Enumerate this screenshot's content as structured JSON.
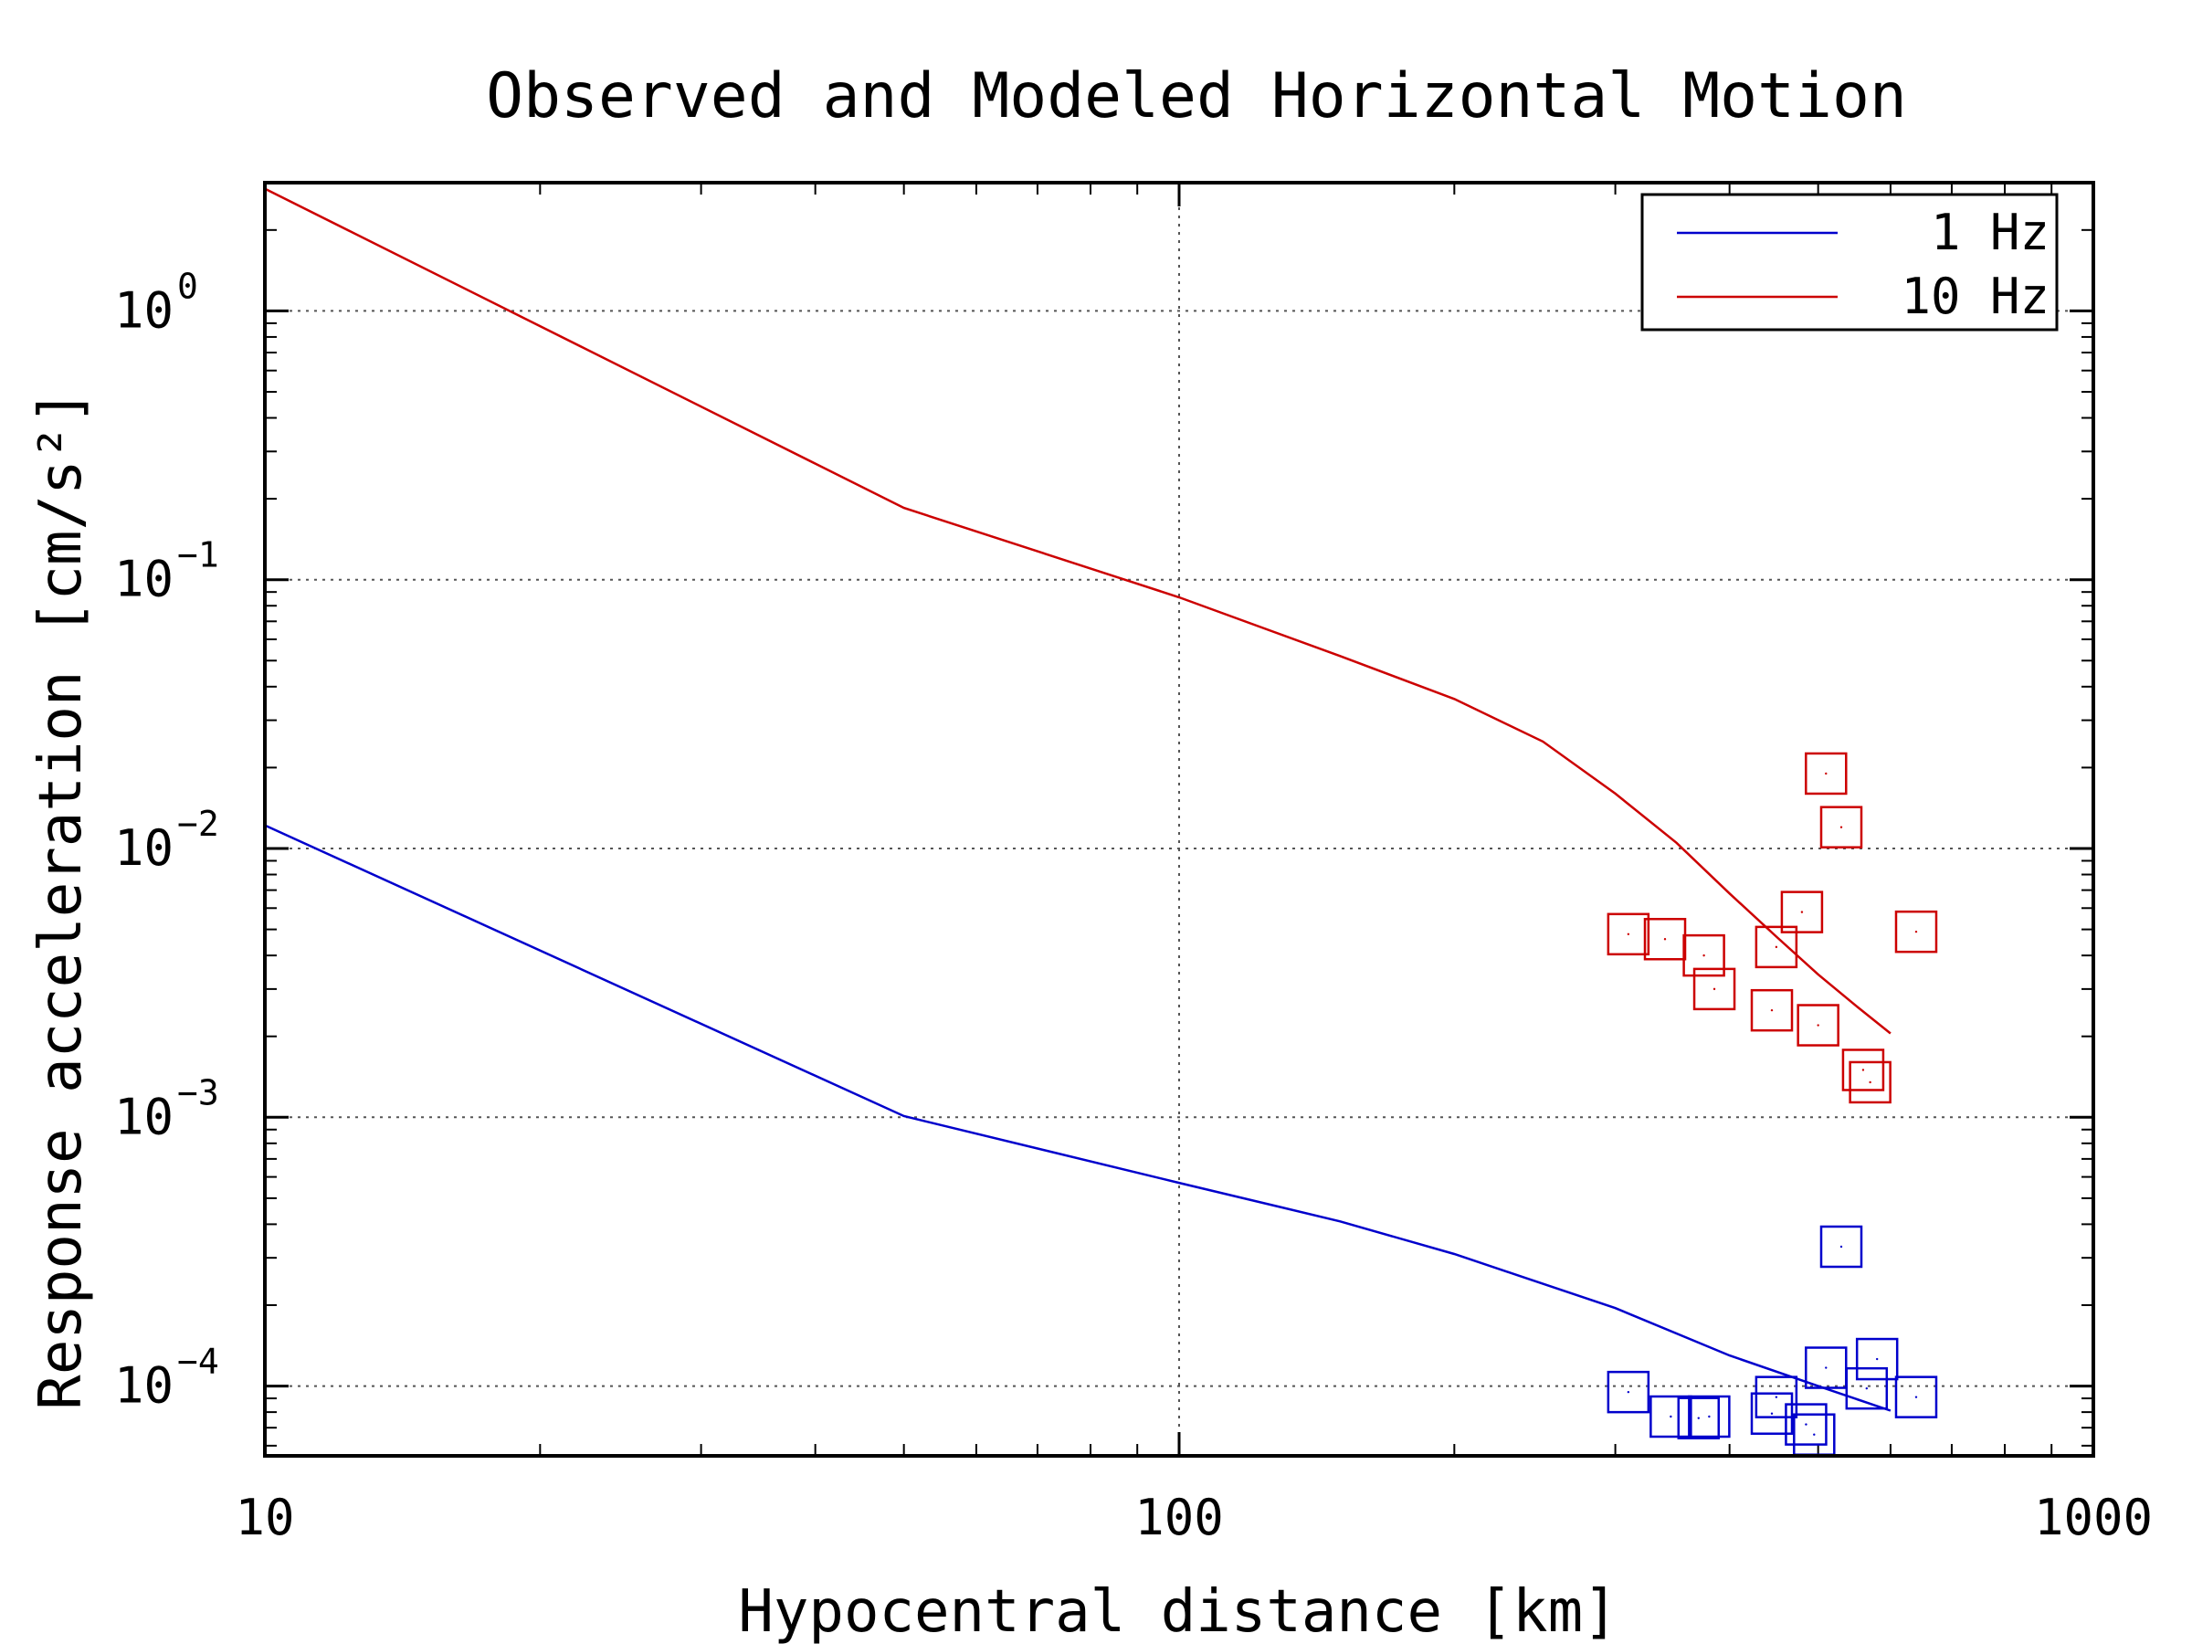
{
  "chart_data": {
    "type": "line",
    "title": "Observed and Modeled Horizontal Motion",
    "xlabel": "Hypocentral distance [km]",
    "ylabel": "Response acceleration [cm/s²]",
    "xscale": "log",
    "yscale": "log",
    "xlim": [
      10,
      1000
    ],
    "ylim": [
      5.5e-05,
      3.0
    ],
    "x_ticks": [
      {
        "value": 10,
        "label": "10"
      },
      {
        "value": 100,
        "label": "100"
      },
      {
        "value": 1000,
        "label": "1000"
      }
    ],
    "y_ticks": [
      {
        "value": 0.0001,
        "base": "10",
        "exp": "−4"
      },
      {
        "value": 0.001,
        "base": "10",
        "exp": "−3"
      },
      {
        "value": 0.01,
        "base": "10",
        "exp": "−2"
      },
      {
        "value": 0.1,
        "base": "10",
        "exp": "−1"
      },
      {
        "value": 1,
        "base": "10",
        "exp": "0"
      }
    ],
    "grid": true,
    "legend_position": "top-right",
    "series": [
      {
        "name": "1 Hz",
        "color": "#0000cc",
        "kind": "line",
        "x": [
          10,
          50,
          100,
          150,
          200,
          300,
          400,
          500,
          600
        ],
        "y": [
          0.0122,
          0.00101,
          0.00057,
          0.00041,
          0.00031,
          0.000195,
          0.00013,
          0.0001,
          8.1e-05
        ]
      },
      {
        "name": "10 Hz",
        "color": "#cc0000",
        "kind": "line",
        "x": [
          10,
          50,
          100,
          150,
          200,
          250,
          300,
          350,
          400,
          450,
          500,
          550,
          600
        ],
        "y": [
          2.85,
          0.185,
          0.086,
          0.052,
          0.036,
          0.025,
          0.016,
          0.0105,
          0.0068,
          0.0047,
          0.0034,
          0.0026,
          0.00205
        ]
      },
      {
        "name": "",
        "color": "#cc0000",
        "kind": "markers",
        "x": [
          310,
          340,
          375,
          385,
          445,
          450,
          480,
          500,
          510,
          530,
          560,
          570,
          640
        ],
        "y": [
          0.0048,
          0.0046,
          0.004,
          0.003,
          0.0025,
          0.0043,
          0.0058,
          0.0022,
          0.019,
          0.012,
          0.0015,
          0.00135,
          0.0049
        ]
      },
      {
        "name": "",
        "color": "#0000cc",
        "kind": "markers",
        "x": [
          310,
          345,
          370,
          380,
          445,
          450,
          485,
          495,
          510,
          530,
          565,
          580,
          640
        ],
        "y": [
          9.5e-05,
          7.7e-05,
          7.6e-05,
          7.7e-05,
          7.9e-05,
          9.1e-05,
          7.2e-05,
          6.6e-05,
          0.000117,
          0.00033,
          9.8e-05,
          0.000126,
          9.1e-05
        ]
      }
    ]
  }
}
